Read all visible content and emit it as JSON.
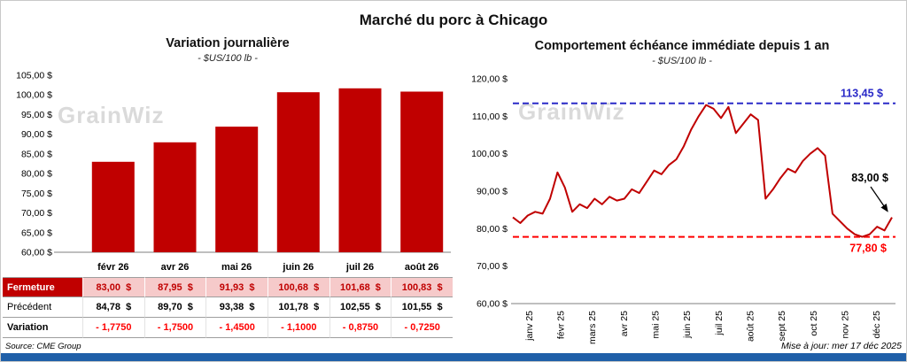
{
  "page": {
    "title": "Marché du porc à Chicago",
    "watermark": "GrainWiz",
    "source": "Source: CME Group",
    "updated": "Mise à jour: mer 17 déc 2025"
  },
  "colors": {
    "accent_red": "#C00000",
    "variation_red": "#FF0000",
    "high_blue": "#2A2AC8",
    "low_red": "#FF0000",
    "table_highlight": "#F6CACA",
    "footer_bar_blue": "#1F5FA8",
    "watermark_gray": "#DADADA"
  },
  "chart_data": [
    {
      "type": "bar",
      "title": "Variation journalière",
      "subtitle": "- $US/100 lb -",
      "categories": [
        "févr 26",
        "avr 26",
        "mai 26",
        "juin 26",
        "juil 26",
        "août 26"
      ],
      "values": [
        83.0,
        87.95,
        91.93,
        100.68,
        101.68,
        100.83
      ],
      "bar_color": "#C00000",
      "ylim": [
        60,
        105
      ],
      "ytick_step": 5,
      "ytick_labels": [
        "105,00 $",
        "100,00 $",
        "95,00 $",
        "90,00 $",
        "85,00 $",
        "80,00 $",
        "75,00 $",
        "70,00 $",
        "65,00 $",
        "60,00 $"
      ],
      "grid": false,
      "legend": false
    },
    {
      "type": "line",
      "title": "Comportement échéance immédiate depuis 1 an",
      "subtitle": "- $US/100 lb -",
      "x_labels": [
        "janv 25",
        "févr 25",
        "mars 25",
        "avr 25",
        "mai 25",
        "juin 25",
        "juil 25",
        "août 25",
        "sept 25",
        "oct 25",
        "nov 25",
        "déc 25"
      ],
      "series": [
        {
          "name": "échéance immédiate",
          "color": "#C00000",
          "values": [
            83.0,
            81.5,
            83.5,
            84.5,
            84.0,
            88.0,
            95.0,
            91.0,
            84.5,
            86.5,
            85.5,
            88.0,
            86.5,
            88.5,
            87.5,
            88.0,
            90.5,
            89.5,
            92.5,
            95.5,
            94.5,
            97.0,
            98.5,
            102.0,
            106.5,
            110.0,
            113.0,
            112.0,
            109.5,
            112.5,
            105.5,
            108.0,
            110.5,
            109.0,
            88.0,
            90.5,
            93.5,
            96.0,
            95.0,
            98.0,
            100.0,
            101.5,
            99.5,
            84.0,
            82.0,
            80.0,
            78.5,
            77.8,
            78.5,
            80.5,
            79.5,
            83.0
          ]
        }
      ],
      "ylim": [
        60,
        120
      ],
      "ytick_step": 10,
      "ytick_labels": [
        "120,00 $",
        "110,00 $",
        "100,00 $",
        "90,00 $",
        "80,00 $",
        "70,00 $",
        "60,00 $"
      ],
      "reference_lines": [
        {
          "value": 113.45,
          "label": "113,45 $",
          "color": "#2A2AC8",
          "style": "dashed"
        },
        {
          "value": 77.8,
          "label": "77,80 $",
          "color": "#FF0000",
          "style": "dashed"
        }
      ],
      "annotations": [
        {
          "text": "83,00 $",
          "value": 83.0,
          "color": "#000000",
          "type": "callout-arrow"
        }
      ],
      "grid": false,
      "legend": false
    }
  ],
  "table": {
    "column_headers": [
      "févr 26",
      "avr 26",
      "mai 26",
      "juin 26",
      "juil 26",
      "août 26"
    ],
    "rows": [
      {
        "label": "Fermeture",
        "values": [
          "83,00  $",
          "87,95  $",
          "91,93  $",
          "100,68  $",
          "101,68  $",
          "100,83  $"
        ]
      },
      {
        "label": "Précédent",
        "values": [
          "84,78  $",
          "89,70  $",
          "93,38  $",
          "101,78  $",
          "102,55  $",
          "101,55  $"
        ]
      },
      {
        "label": "Variation",
        "values": [
          "- 1,7750",
          "- 1,7500",
          "- 1,4500",
          "- 1,1000",
          "- 0,8750",
          "- 0,7250"
        ]
      }
    ]
  }
}
